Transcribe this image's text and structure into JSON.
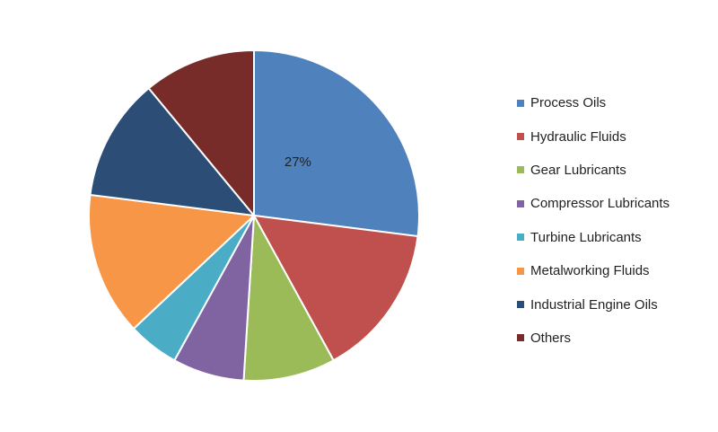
{
  "chart_data": {
    "type": "pie",
    "title": "",
    "categories": [
      "Process Oils",
      "Hydraulic Fluids",
      "Gear Lubricants",
      "Compressor Lubricants",
      "Turbine Lubricants",
      "Metalworking Fluids",
      "Industrial Engine Oils",
      "Others"
    ],
    "values": [
      27,
      15,
      9,
      7,
      5,
      14,
      12,
      11
    ],
    "colors": [
      "#4f81bd",
      "#c0504d",
      "#9bbb59",
      "#8064a2",
      "#4bacc6",
      "#f79646",
      "#2c4d75",
      "#772c2a"
    ],
    "data_labels": [
      "27%",
      "",
      "",
      "",
      "",
      "",
      "",
      ""
    ],
    "legend_position": "right"
  }
}
